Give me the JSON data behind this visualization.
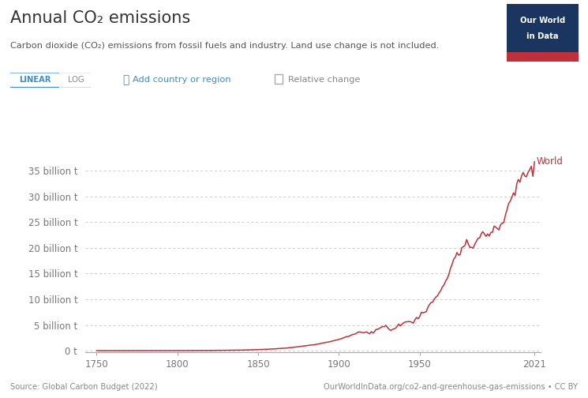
{
  "title": "Annual CO₂ emissions",
  "subtitle": "Carbon dioxide (CO₂) emissions from fossil fuels and industry. Land use change is not included.",
  "ylabel_ticks": [
    "0 t",
    "5 billion t",
    "10 billion t",
    "15 billion t",
    "20 billion t",
    "25 billion t",
    "30 billion t",
    "35 billion t"
  ],
  "ytick_values": [
    0,
    5,
    10,
    15,
    20,
    25,
    30,
    35
  ],
  "xtick_values": [
    1750,
    1800,
    1850,
    1900,
    1950,
    2021
  ],
  "xlim": [
    1743,
    2025
  ],
  "ylim": [
    -0.3,
    38
  ],
  "line_color": "#c0303a",
  "line_label": "World",
  "source_left": "Source: Global Carbon Budget (2022)",
  "source_right": "OurWorldInData.org/co2-and-greenhouse-gas-emissions • CC BY",
  "bg_color": "#ffffff",
  "grid_color": "#cccccc",
  "owid_box_color": "#1a3560",
  "owid_box_red": "#c0303a",
  "button_linear_text": "LINEAR",
  "button_log_text": "LOG",
  "add_region_text": " Add country or region",
  "relative_change_text": "Relative change",
  "tick_color": "#777777",
  "spine_color": "#aaaaaa"
}
